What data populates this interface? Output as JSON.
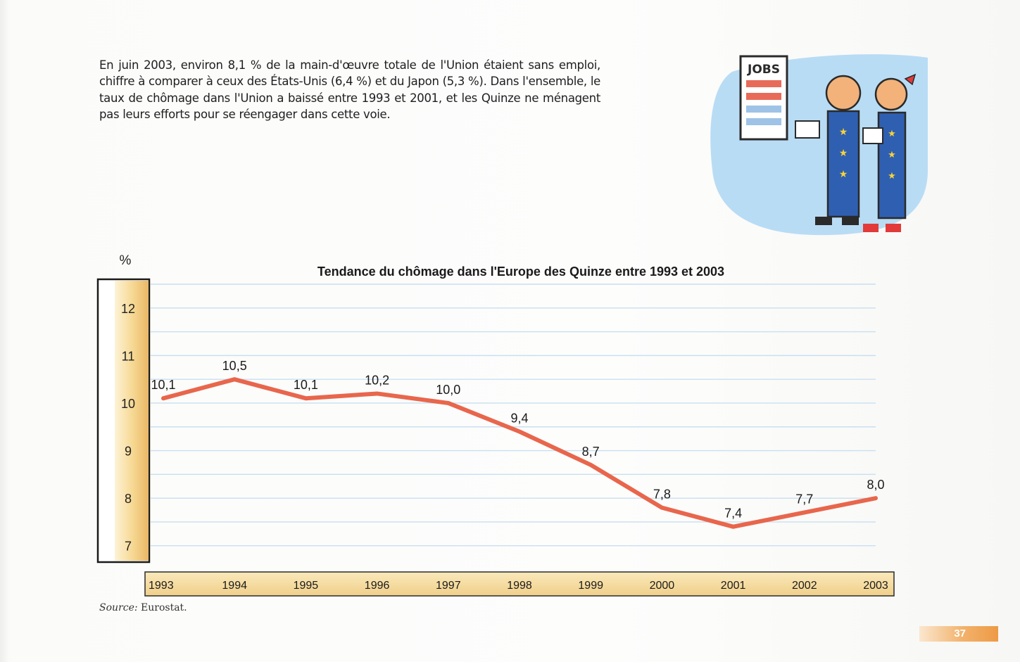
{
  "intro_text": "En juin 2003, environ 8,1 % de la main-d'œuvre totale de l'Union étaient sans emploi, chiffre à comparer à ceux des États-Unis (6,4 %) et du Japon (5,3 %). Dans l'ensemble, le taux de chômage dans l'Union a baissé entre 1993 et 2001, et les Quinze ne ménagent pas leurs efforts pour se réengager dans cette voie.",
  "illustration": {
    "sign_text": "JOBS"
  },
  "chart_data": {
    "type": "line",
    "title": "Tendance du chômage dans l'Europe des Quinze entre 1993 et 2003",
    "ylabel": "%",
    "xlabel": "",
    "x": [
      "1993",
      "1994",
      "1995",
      "1996",
      "1997",
      "1998",
      "1999",
      "2000",
      "2001",
      "2002",
      "2003"
    ],
    "series": [
      {
        "values": [
          10.1,
          10.5,
          10.1,
          10.2,
          10.0,
          9.4,
          8.7,
          7.8,
          7.4,
          7.7,
          8.0
        ],
        "labels": [
          "10,1",
          "10,5",
          "10,1",
          "10,2",
          "10,0",
          "9,4",
          "8,7",
          "7,8",
          "7,4",
          "7,7",
          "8,0"
        ]
      }
    ],
    "yticks": [
      "12",
      "11",
      "10",
      "9",
      "8",
      "7"
    ],
    "ylim": [
      6.7,
      12.5
    ],
    "grid": true,
    "colors": {
      "line": "#e8664c",
      "grid": "#c9dff0",
      "axis_band": "#f7dfa0",
      "axis_band_edge": "#e9b766"
    }
  },
  "source": {
    "label": "Source:",
    "text": " Eurostat."
  },
  "page_number": "37"
}
